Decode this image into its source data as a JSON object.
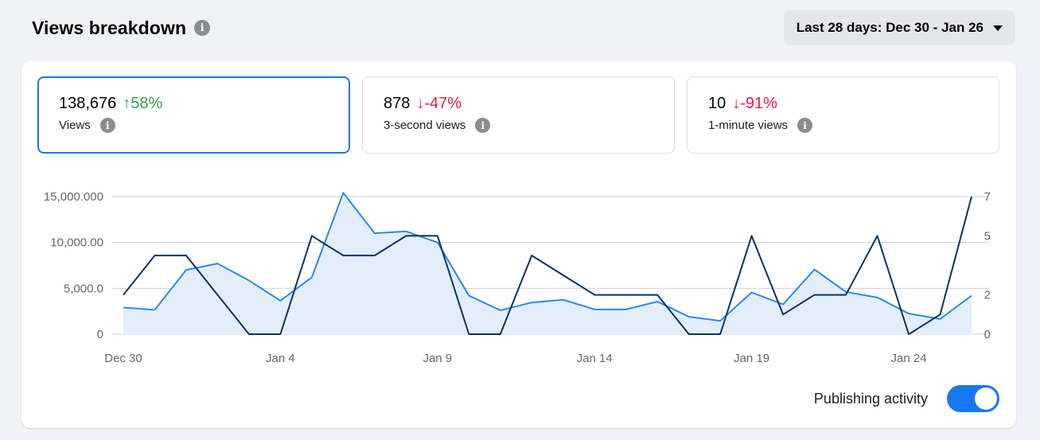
{
  "header": {
    "title": "Views breakdown",
    "date_range": "Last 28 days: Dec 30 - Jan 26"
  },
  "metrics": [
    {
      "value": "138,676",
      "change": "58%",
      "arrow": "↑",
      "direction": "up",
      "label": "Views",
      "selected": true
    },
    {
      "value": "878",
      "change": "-47%",
      "arrow": "↓",
      "direction": "down",
      "label": "3-second views",
      "selected": false
    },
    {
      "value": "10",
      "change": "-91%",
      "arrow": "↓",
      "direction": "down",
      "label": "1-minute views",
      "selected": false
    }
  ],
  "toggle": {
    "label": "Publishing activity",
    "on": true
  },
  "colors": {
    "accent": "#1877f2",
    "views_line": "#2d88e8",
    "views_fill": "#e3eefb",
    "activity_line": "#0a3361",
    "grid": "#ced0d4"
  },
  "chart_data": {
    "type": "line",
    "x": [
      "Dec 30",
      "Dec 31",
      "Jan 1",
      "Jan 2",
      "Jan 3",
      "Jan 4",
      "Jan 5",
      "Jan 6",
      "Jan 7",
      "Jan 8",
      "Jan 9",
      "Jan 10",
      "Jan 11",
      "Jan 12",
      "Jan 13",
      "Jan 14",
      "Jan 15",
      "Jan 16",
      "Jan 17",
      "Jan 18",
      "Jan 19",
      "Jan 20",
      "Jan 21",
      "Jan 22",
      "Jan 23",
      "Jan 24",
      "Jan 25",
      "Jan 26"
    ],
    "x_tick_labels": [
      "Dec 30",
      "Jan 4",
      "Jan 9",
      "Jan 14",
      "Jan 19",
      "Jan 24"
    ],
    "x_tick_indices": [
      0,
      5,
      10,
      15,
      20,
      25
    ],
    "left_axis": {
      "ticks": [
        0,
        5000,
        10000,
        15000
      ],
      "tick_labels": [
        "0",
        "5,000.0",
        "10,000.00",
        "15,000.000"
      ],
      "ylim": [
        0,
        15000
      ]
    },
    "right_axis": {
      "ticks": [
        0,
        2,
        5,
        7
      ],
      "tick_labels": [
        "0",
        "2",
        "5",
        "7"
      ],
      "ylim": [
        0,
        7
      ]
    },
    "series": [
      {
        "axis": "left",
        "style": "area",
        "values": [
          2900,
          2650,
          7000,
          7700,
          5850,
          3650,
          6200,
          15400,
          11000,
          11200,
          10000,
          4200,
          2600,
          3450,
          3750,
          2700,
          2700,
          3550,
          1900,
          1450,
          4550,
          3250,
          7050,
          4600,
          4000,
          2250,
          1650,
          4200
        ]
      },
      {
        "axis": "right",
        "style": "line",
        "values": [
          2,
          4,
          4,
          2,
          0,
          0,
          5,
          4,
          4,
          5,
          5,
          0,
          0,
          4,
          3,
          2,
          2,
          2,
          0,
          0,
          5,
          1,
          2,
          2,
          5,
          0,
          1,
          7
        ]
      }
    ],
    "grid": true
  }
}
